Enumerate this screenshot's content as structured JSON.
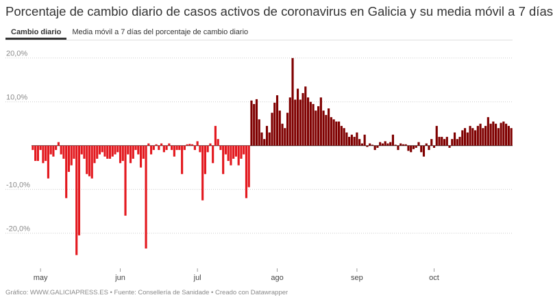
{
  "tabs": [
    "Cambio diario",
    "Media móvil a 7 días del porcentaje de cambio diario"
  ],
  "source": "Gráfico: WWW.GALICIAPRESS.ES • Fuente: Consellería de Sanidade • Creado con Datawrapper",
  "chart_data": {
    "type": "bar",
    "title": "Porcentaje de cambio diario de casos activos de coronavirus en Galicia y su media móvil a 7 días",
    "categories": [
      null,
      null,
      null,
      "may",
      null,
      null,
      null,
      null,
      null,
      null,
      null,
      null,
      null,
      null,
      null,
      null,
      null,
      null,
      null,
      null,
      null,
      null,
      null,
      null,
      null,
      null,
      null,
      null,
      null,
      null,
      null,
      null,
      null,
      null,
      "jun",
      null,
      null,
      null,
      null,
      null,
      null,
      null,
      null,
      null,
      null,
      null,
      null,
      null,
      null,
      null,
      null,
      null,
      null,
      null,
      null,
      null,
      null,
      null,
      null,
      null,
      null,
      null,
      null,
      null,
      "jul",
      null,
      null,
      null,
      null,
      null,
      null,
      null,
      null,
      null,
      null,
      null,
      null,
      null,
      null,
      null,
      null,
      null,
      null,
      null,
      null,
      null,
      null,
      null,
      null,
      null,
      null,
      null,
      null,
      null,
      null,
      "ago",
      null,
      null,
      null,
      null,
      null,
      null,
      null,
      null,
      null,
      null,
      null,
      null,
      null,
      null,
      null,
      null,
      null,
      null,
      null,
      null,
      null,
      null,
      null,
      null,
      null,
      null,
      null,
      null,
      null,
      null,
      "sep",
      null,
      null,
      null,
      null,
      null,
      null,
      null,
      null,
      null,
      null,
      null,
      null,
      null,
      null,
      null,
      null,
      null,
      null,
      null,
      null,
      null,
      null,
      null,
      null,
      null,
      null,
      null,
      null,
      null,
      "oct",
      null,
      null,
      null,
      null,
      null,
      null,
      null,
      null,
      null,
      null,
      null,
      null,
      null,
      null,
      null,
      null,
      null,
      null,
      null,
      null,
      null,
      null,
      null,
      null,
      null,
      null,
      null,
      null,
      null,
      null
    ],
    "series": [
      {
        "color": "#e3191f",
        "values": [
          -1,
          -3.5,
          -3.5,
          -1,
          -4,
          -3.5,
          -7.5,
          -2,
          -2.5,
          -1,
          0.8,
          -2,
          -3,
          -12,
          -6,
          -4.5,
          -3,
          -25,
          -20.5,
          -2,
          -3,
          -6.5,
          -7,
          -7.5,
          -4,
          -3,
          -2,
          -1.5,
          -2.5,
          -3,
          -3,
          -2.5,
          -2,
          -1.5,
          -4,
          -3.5,
          -16,
          -2,
          -4,
          -3,
          -1,
          -2,
          -5,
          -3,
          -23.5,
          0.5,
          -2,
          -1,
          0.3,
          -1,
          0.5,
          -1.5,
          -1,
          0.5,
          -1,
          -2.5,
          -1,
          -1,
          -6.5,
          -1,
          0.3,
          0.4,
          0.3,
          -1,
          1,
          -1.5,
          -12.5,
          -6.5,
          -1.5,
          0.5,
          -4,
          4.5,
          1.5,
          -1,
          -6.5,
          -2,
          -3.5,
          -4.5,
          -3,
          -2.5,
          -4.5,
          -3,
          -2,
          -12,
          -9.5,
          null,
          null,
          null,
          null,
          null,
          null,
          null,
          null,
          null,
          null,
          null,
          null,
          null,
          null,
          null,
          null,
          null,
          null,
          null,
          null,
          null,
          null,
          null,
          null,
          null,
          null,
          null,
          null,
          null,
          null,
          null,
          null,
          null,
          null,
          null,
          null,
          null,
          null,
          null,
          null,
          null,
          null,
          null,
          null,
          null,
          null,
          null,
          null,
          null,
          null,
          null,
          null,
          null,
          null,
          null,
          null,
          null,
          null,
          null,
          null,
          null,
          null,
          null,
          null,
          null,
          null,
          null,
          null,
          null,
          null,
          null,
          null,
          null,
          null,
          null,
          null,
          null,
          null,
          null,
          null,
          null,
          null,
          null,
          null,
          null,
          null,
          null,
          null,
          null,
          null,
          null,
          null,
          null,
          null,
          null,
          null,
          null,
          null,
          null,
          null,
          null,
          null
        ]
      },
      {
        "color": "#7f0000",
        "values": [
          null,
          null,
          null,
          null,
          null,
          null,
          null,
          null,
          null,
          null,
          null,
          null,
          null,
          null,
          null,
          null,
          null,
          null,
          null,
          null,
          null,
          null,
          null,
          null,
          null,
          null,
          null,
          null,
          null,
          null,
          null,
          null,
          null,
          null,
          null,
          null,
          null,
          null,
          null,
          null,
          null,
          null,
          null,
          null,
          null,
          null,
          null,
          null,
          null,
          null,
          null,
          null,
          null,
          null,
          null,
          null,
          null,
          null,
          null,
          null,
          null,
          null,
          null,
          null,
          null,
          null,
          null,
          null,
          null,
          null,
          null,
          null,
          null,
          null,
          null,
          null,
          null,
          null,
          null,
          null,
          null,
          null,
          null,
          null,
          null,
          10.3,
          9.5,
          10.6,
          6,
          3,
          1.5,
          4.5,
          3,
          7.5,
          9.8,
          11.5,
          8,
          5,
          4,
          7.5,
          11,
          20,
          10.5,
          13,
          10.5,
          12,
          13.5,
          11,
          10,
          9.5,
          8,
          9,
          11,
          8,
          7,
          8.5,
          6.5,
          6,
          5.5,
          5.5,
          4.5,
          4,
          3,
          2,
          2.5,
          2,
          3,
          1.5,
          0.5,
          2.5,
          -0.3,
          0.5,
          0.2,
          -1,
          -0.5,
          0.8,
          0.5,
          1,
          0.5,
          0.8,
          2.5,
          0.2,
          -1,
          0.5,
          0.3,
          0.3,
          -1.2,
          -1.5,
          -0.8,
          -0.5,
          0.8,
          -1.5,
          -2.5,
          0.5,
          -1,
          1.5,
          -0.5,
          4.5,
          2,
          2,
          1.5,
          2,
          -0.5,
          1.5,
          3,
          1.5,
          2,
          3.5,
          4,
          3,
          4.5,
          4,
          3.5,
          4.5,
          5,
          4,
          4.5,
          6.5,
          5,
          5.5,
          5,
          4,
          5.2,
          5.5,
          5,
          4.5,
          4
        ]
      }
    ],
    "ylim": [
      -26,
      22
    ],
    "yticks": [
      {
        "value": 20,
        "label": "20,0%"
      },
      {
        "value": 10,
        "label": "10,0%"
      },
      {
        "value": -10,
        "label": "-10,0%"
      },
      {
        "value": -20,
        "label": "-20,0%"
      }
    ],
    "grid": true
  }
}
